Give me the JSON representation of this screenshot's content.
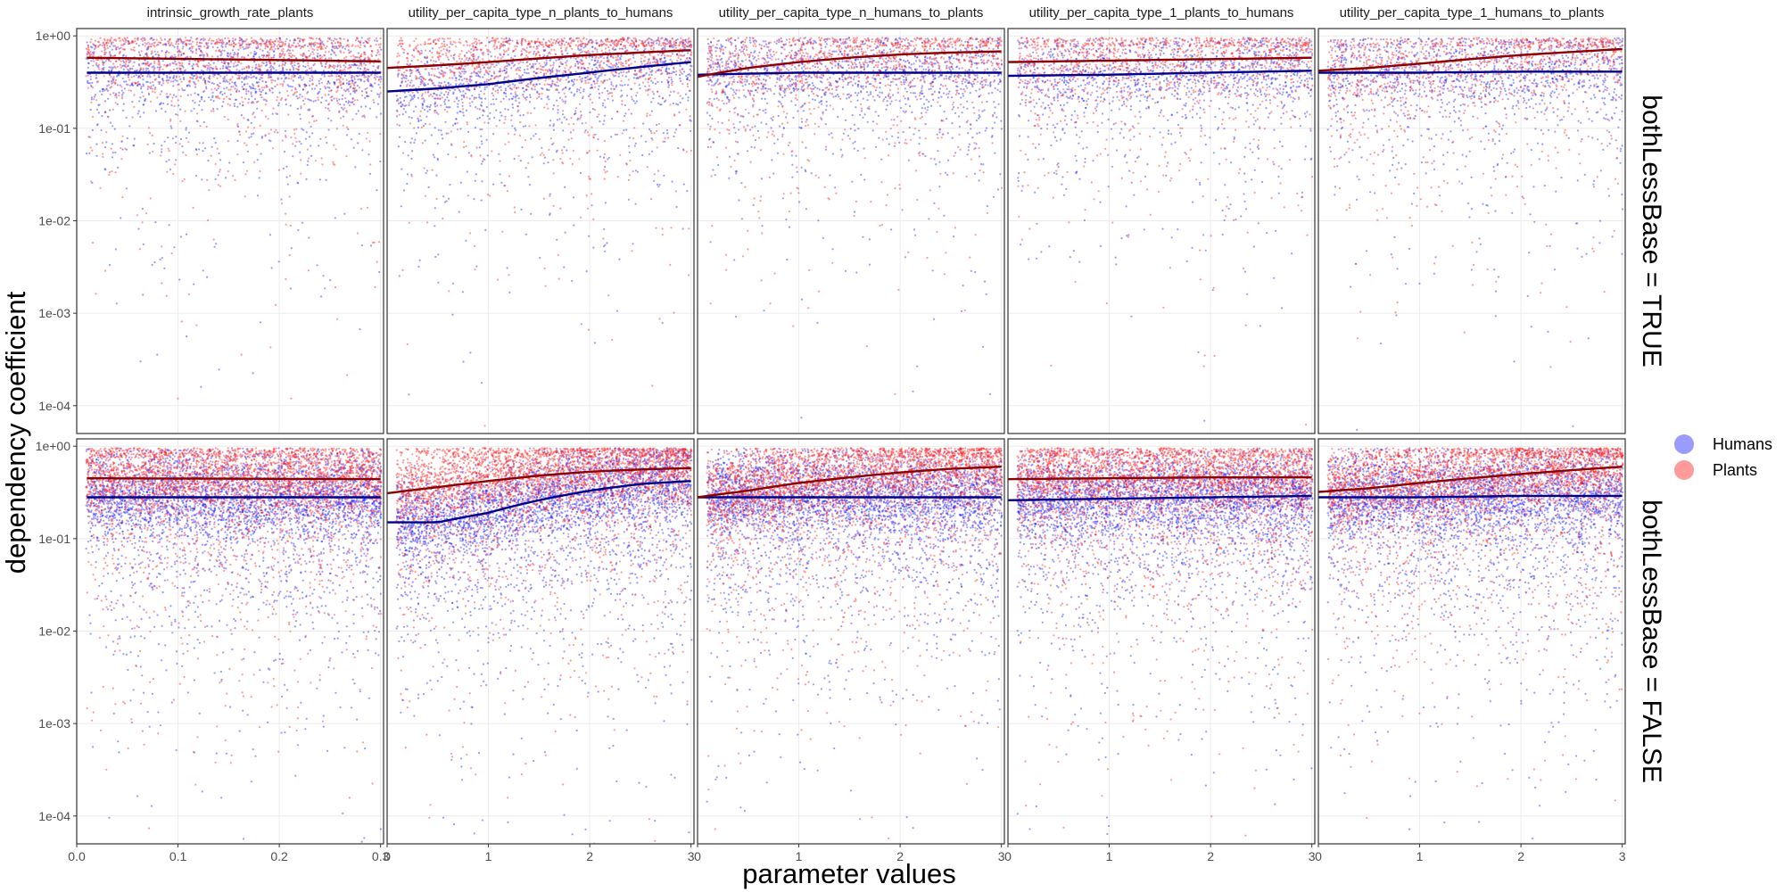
{
  "chart_data": {
    "type": "scatter",
    "ylabel": "dependency coefficient",
    "xlabel": "parameter values",
    "y_scale": "log10",
    "ylim": [
      5e-05,
      1.2
    ],
    "y_ticks": [
      {
        "value": 1,
        "label": "1e+00"
      },
      {
        "value": 0.1,
        "label": "1e-01"
      },
      {
        "value": 0.01,
        "label": "1e-02"
      },
      {
        "value": 0.001,
        "label": "1e-03"
      },
      {
        "value": 0.0001,
        "label": "1e-04"
      }
    ],
    "grid": true,
    "legend": {
      "placement": "right",
      "entries": [
        {
          "name": "Humans",
          "color": "#6666ff"
        },
        {
          "name": "Plants",
          "color": "#ff6666"
        }
      ]
    },
    "point_colors": {
      "Humans": "#1f1fff",
      "Plants": "#ff1f1f"
    },
    "trend_colors": {
      "Humans": "#00008b",
      "Plants": "#8b0000"
    },
    "rows": [
      {
        "label": "bothLessBase = TRUE",
        "density": 1
      },
      {
        "label": "bothLessBase = FALSE",
        "density": 3
      }
    ],
    "columns": [
      {
        "title": "intrinsic_growth_rate_plants",
        "xlim": [
          0.0,
          0.31
        ],
        "x_ticks": [
          0.0,
          0.1,
          0.2,
          0.3
        ],
        "x_tick_labels": [
          "0.0",
          "0.1",
          "0.2",
          "0.3"
        ]
      },
      {
        "title": "utility_per_capita_type_n_plants_to_humans",
        "xlim": [
          0.0,
          3.1
        ],
        "x_ticks": [
          0,
          1,
          2,
          3
        ],
        "x_tick_labels": [
          "0",
          "1",
          "2",
          "3"
        ]
      },
      {
        "title": "utility_per_capita_type_n_humans_to_plants",
        "xlim": [
          0.0,
          3.1
        ],
        "x_ticks": [
          0,
          1,
          2,
          3
        ],
        "x_tick_labels": [
          "0",
          "1",
          "2",
          "3"
        ]
      },
      {
        "title": "utility_per_capita_type_1_plants_to_humans",
        "xlim": [
          0.0,
          3.1
        ],
        "x_ticks": [
          0,
          1,
          2,
          3
        ],
        "x_tick_labels": [
          "0",
          "1",
          "2",
          "3"
        ]
      },
      {
        "title": "utility_per_capita_type_1_humans_to_plants",
        "xlim": [
          0.0,
          3.1
        ],
        "x_ticks": [
          0,
          1,
          2,
          3
        ],
        "x_tick_labels": [
          "0",
          "1",
          "2",
          "3"
        ]
      }
    ],
    "trend_lines": [
      [
        {
          "Humans": {
            "x": [
              0.01,
              0.3
            ],
            "y": [
              0.4,
              0.4
            ]
          },
          "Plants": {
            "x": [
              0.01,
              0.3
            ],
            "y": [
              0.58,
              0.53
            ]
          }
        },
        {
          "Humans": {
            "x": [
              0,
              0.5,
              1,
              1.5,
              2,
              2.5,
              3
            ],
            "y": [
              0.25,
              0.27,
              0.3,
              0.35,
              0.4,
              0.46,
              0.52
            ]
          },
          "Plants": {
            "x": [
              0,
              0.5,
              1,
              1.5,
              2,
              2.5,
              3
            ],
            "y": [
              0.45,
              0.48,
              0.52,
              0.57,
              0.62,
              0.66,
              0.7
            ]
          }
        },
        {
          "Humans": {
            "x": [
              0,
              1,
              2,
              3
            ],
            "y": [
              0.38,
              0.4,
              0.4,
              0.4
            ]
          },
          "Plants": {
            "x": [
              0,
              0.5,
              1,
              1.5,
              2,
              2.5,
              3
            ],
            "y": [
              0.36,
              0.45,
              0.52,
              0.58,
              0.63,
              0.66,
              0.68
            ]
          }
        },
        {
          "Humans": {
            "x": [
              0,
              1,
              2,
              3
            ],
            "y": [
              0.37,
              0.38,
              0.4,
              0.42
            ]
          },
          "Plants": {
            "x": [
              0,
              1,
              2,
              3
            ],
            "y": [
              0.52,
              0.54,
              0.56,
              0.58
            ]
          }
        },
        {
          "Humans": {
            "x": [
              0,
              1,
              2,
              3
            ],
            "y": [
              0.4,
              0.4,
              0.41,
              0.41
            ]
          },
          "Plants": {
            "x": [
              0,
              0.5,
              1,
              1.5,
              2,
              2.5,
              3
            ],
            "y": [
              0.42,
              0.45,
              0.5,
              0.56,
              0.62,
              0.67,
              0.72
            ]
          }
        }
      ],
      [
        {
          "Humans": {
            "x": [
              0.01,
              0.3
            ],
            "y": [
              0.28,
              0.28
            ]
          },
          "Plants": {
            "x": [
              0.01,
              0.3
            ],
            "y": [
              0.45,
              0.44
            ]
          }
        },
        {
          "Humans": {
            "x": [
              0,
              0.5,
              1,
              1.5,
              2,
              2.5,
              3
            ],
            "y": [
              0.15,
              0.15,
              0.19,
              0.26,
              0.33,
              0.39,
              0.42
            ]
          },
          "Plants": {
            "x": [
              0,
              0.5,
              1,
              1.5,
              2,
              2.5,
              3
            ],
            "y": [
              0.31,
              0.36,
              0.42,
              0.48,
              0.53,
              0.56,
              0.58
            ]
          }
        },
        {
          "Humans": {
            "x": [
              0,
              1,
              2,
              3
            ],
            "y": [
              0.28,
              0.28,
              0.28,
              0.28
            ]
          },
          "Plants": {
            "x": [
              0,
              0.5,
              1,
              1.5,
              2,
              2.5,
              3
            ],
            "y": [
              0.28,
              0.33,
              0.4,
              0.46,
              0.52,
              0.57,
              0.6
            ]
          }
        },
        {
          "Humans": {
            "x": [
              0,
              1,
              2,
              3
            ],
            "y": [
              0.26,
              0.27,
              0.28,
              0.29
            ]
          },
          "Plants": {
            "x": [
              0,
              1,
              2,
              3
            ],
            "y": [
              0.44,
              0.45,
              0.46,
              0.46
            ]
          }
        },
        {
          "Humans": {
            "x": [
              0,
              1,
              2,
              3
            ],
            "y": [
              0.28,
              0.28,
              0.29,
              0.29
            ]
          },
          "Plants": {
            "x": [
              0,
              0.5,
              1,
              1.5,
              2,
              2.5,
              3
            ],
            "y": [
              0.32,
              0.35,
              0.4,
              0.45,
              0.5,
              0.55,
              0.6
            ]
          }
        }
      ]
    ]
  }
}
